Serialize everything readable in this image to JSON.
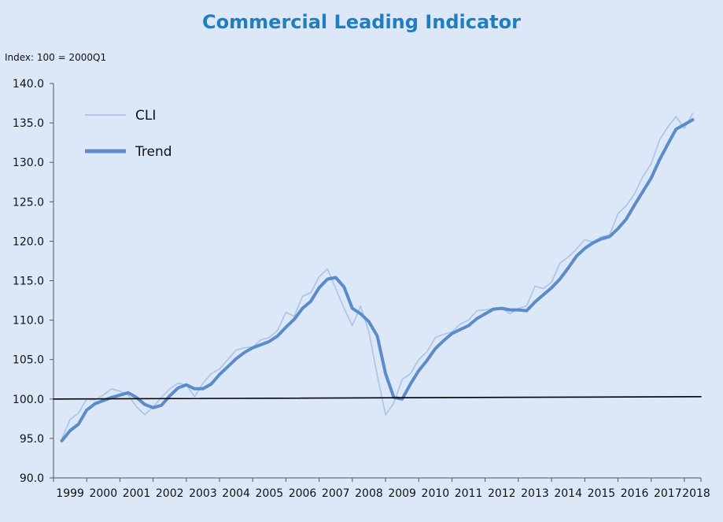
{
  "chart_data": {
    "type": "line",
    "title": "Commercial Leading Indicator",
    "ylabel": "Index: 100 = 2000Q1",
    "xlabel": "",
    "ylim": [
      90,
      140
    ],
    "yticks": [
      90,
      95,
      100,
      105,
      110,
      115,
      120,
      125,
      130,
      135,
      140
    ],
    "ytick_labels": [
      "90.0",
      "95.0",
      "100.0",
      "105.0",
      "110.0",
      "115.0",
      "120.0",
      "125.0",
      "130.0",
      "135.0",
      "140.0"
    ],
    "xlim": [
      1999.0,
      2018.5
    ],
    "xtick_labels": [
      "1999",
      "2000",
      "2001",
      "2002",
      "2003",
      "2004",
      "2005",
      "2006",
      "2007",
      "2008",
      "2009",
      "2010",
      "2011",
      "2012",
      "2013",
      "2014",
      "2015",
      "2016",
      "2017",
      "2018"
    ],
    "legend": "top-left",
    "grid": false,
    "series": [
      {
        "name": "CLI",
        "color": "#a7c4ea",
        "x": [
          1999.25,
          1999.5,
          1999.75,
          2000.0,
          2000.25,
          2000.5,
          2000.75,
          2001.0,
          2001.25,
          2001.5,
          2001.75,
          2002.0,
          2002.25,
          2002.5,
          2002.75,
          2003.0,
          2003.25,
          2003.5,
          2003.75,
          2004.0,
          2004.25,
          2004.5,
          2004.75,
          2005.0,
          2005.25,
          2005.5,
          2005.75,
          2006.0,
          2006.25,
          2006.5,
          2006.75,
          2007.0,
          2007.25,
          2007.5,
          2007.75,
          2008.0,
          2008.25,
          2008.5,
          2008.75,
          2009.0,
          2009.25,
          2009.5,
          2009.75,
          2010.0,
          2010.25,
          2010.5,
          2010.75,
          2011.0,
          2011.25,
          2011.5,
          2011.75,
          2012.0,
          2012.25,
          2012.5,
          2012.75,
          2013.0,
          2013.25,
          2013.5,
          2013.75,
          2014.0,
          2014.25,
          2014.5,
          2014.75,
          2015.0,
          2015.25,
          2015.5,
          2015.75,
          2016.0,
          2016.25,
          2016.5,
          2016.75,
          2017.0,
          2017.25,
          2017.5,
          2017.75,
          2018.0,
          2018.25
        ],
        "values": [
          95.0,
          97.4,
          98.2,
          100.0,
          99.9,
          100.5,
          101.3,
          101.0,
          100.5,
          99.0,
          98.0,
          99.0,
          100.2,
          101.3,
          102.0,
          101.8,
          100.3,
          102.0,
          103.2,
          103.8,
          105.0,
          106.2,
          106.5,
          106.6,
          107.5,
          107.8,
          108.7,
          111.0,
          110.5,
          113.0,
          113.5,
          115.5,
          116.5,
          114.0,
          111.5,
          109.3,
          111.8,
          108.5,
          103.0,
          98.0,
          99.5,
          102.5,
          103.2,
          105.0,
          106.0,
          107.8,
          108.2,
          108.5,
          109.5,
          110.0,
          111.2,
          111.3,
          111.5,
          111.5,
          110.8,
          111.5,
          111.8,
          114.3,
          114.0,
          114.8,
          117.2,
          118.0,
          119.0,
          120.2,
          119.9,
          120.6,
          120.8,
          123.5,
          124.5,
          126.0,
          128.2,
          129.8,
          132.8,
          134.5,
          135.8,
          134.3,
          136.2
        ]
      },
      {
        "name": "Trend",
        "color": "#5b8cc9",
        "x": [
          1999.25,
          1999.5,
          1999.75,
          2000.0,
          2000.25,
          2000.5,
          2000.75,
          2001.0,
          2001.25,
          2001.5,
          2001.75,
          2002.0,
          2002.25,
          2002.5,
          2002.75,
          2003.0,
          2003.25,
          2003.5,
          2003.75,
          2004.0,
          2004.25,
          2004.5,
          2004.75,
          2005.0,
          2005.25,
          2005.5,
          2005.75,
          2006.0,
          2006.25,
          2006.5,
          2006.75,
          2007.0,
          2007.25,
          2007.5,
          2007.75,
          2008.0,
          2008.25,
          2008.5,
          2008.75,
          2009.0,
          2009.25,
          2009.5,
          2009.75,
          2010.0,
          2010.25,
          2010.5,
          2010.75,
          2011.0,
          2011.25,
          2011.5,
          2011.75,
          2012.0,
          2012.25,
          2012.5,
          2012.75,
          2013.0,
          2013.25,
          2013.5,
          2013.75,
          2014.0,
          2014.25,
          2014.5,
          2014.75,
          2015.0,
          2015.25,
          2015.5,
          2015.75,
          2016.0,
          2016.25,
          2016.5,
          2016.75,
          2017.0,
          2017.25,
          2017.5,
          2017.75,
          2018.0,
          2018.25
        ],
        "values": [
          94.7,
          96.0,
          96.8,
          98.6,
          99.4,
          99.8,
          100.2,
          100.5,
          100.8,
          100.2,
          99.3,
          98.9,
          99.2,
          100.4,
          101.4,
          101.8,
          101.3,
          101.3,
          101.9,
          103.1,
          104.1,
          105.1,
          105.9,
          106.5,
          106.9,
          107.3,
          108.0,
          109.1,
          110.1,
          111.5,
          112.4,
          114.1,
          115.2,
          115.4,
          114.2,
          111.5,
          110.8,
          109.8,
          108.0,
          103.2,
          100.2,
          100.0,
          101.9,
          103.6,
          104.9,
          106.4,
          107.4,
          108.3,
          108.8,
          109.3,
          110.2,
          110.8,
          111.4,
          111.5,
          111.3,
          111.3,
          111.2,
          112.3,
          113.2,
          114.1,
          115.2,
          116.6,
          118.1,
          119.1,
          119.8,
          120.3,
          120.6,
          121.6,
          122.8,
          124.6,
          126.3,
          128.0,
          130.3,
          132.3,
          134.2,
          134.8,
          135.4
        ]
      },
      {
        "name": "",
        "color": "#000000",
        "x": [
          1999.0,
          2018.5
        ],
        "values": [
          100.0,
          100.3
        ]
      }
    ]
  }
}
